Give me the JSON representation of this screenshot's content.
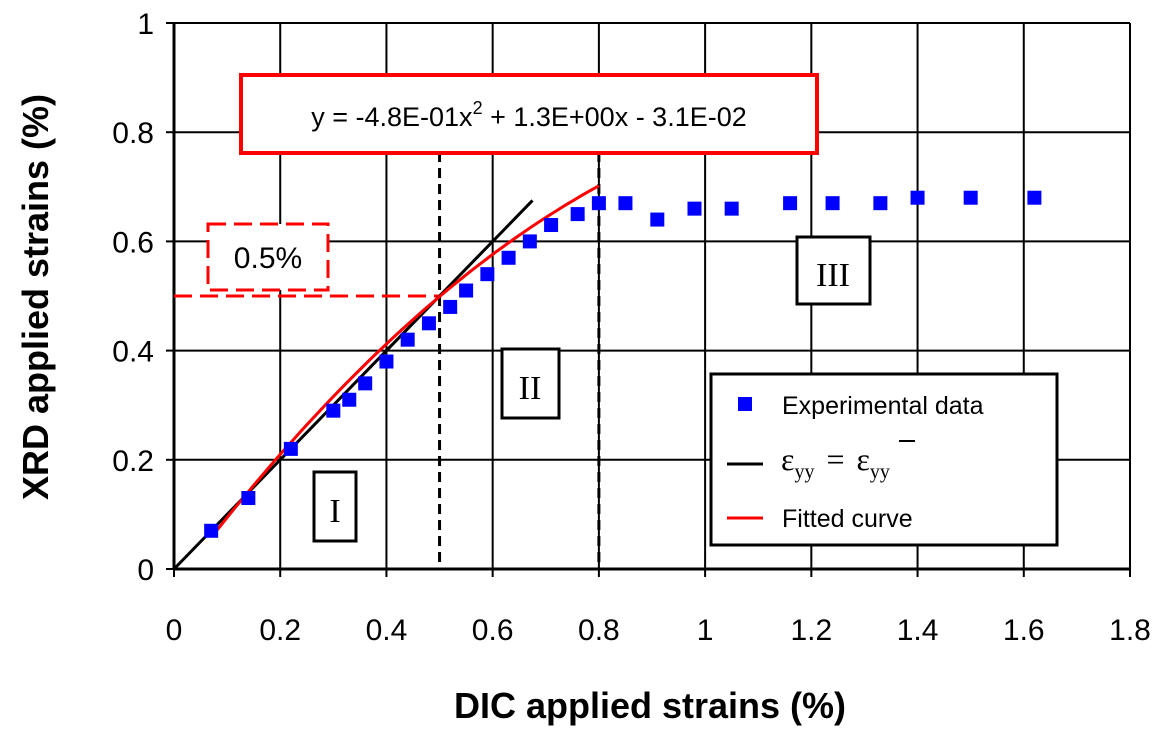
{
  "chart_data": {
    "type": "scatter",
    "xlabel": "DIC applied strains (%)",
    "ylabel": "XRD applied strains (%)",
    "xlim": [
      0,
      1.8
    ],
    "ylim": [
      0,
      1
    ],
    "x_ticks": [
      "0",
      "0.2",
      "0.4",
      "0.6",
      "0.8",
      "1",
      "1.2",
      "1.4",
      "1.6",
      "1.8"
    ],
    "y_ticks": [
      "0",
      "0.2",
      "0.4",
      "0.6",
      "0.8",
      "1"
    ],
    "grid": true,
    "legend_position": "bottom-right",
    "series": [
      {
        "name": "Experimental data",
        "kind": "markers",
        "color": "#0000ff",
        "points": [
          [
            0.07,
            0.07
          ],
          [
            0.14,
            0.13
          ],
          [
            0.22,
            0.22
          ],
          [
            0.3,
            0.29
          ],
          [
            0.33,
            0.31
          ],
          [
            0.36,
            0.34
          ],
          [
            0.4,
            0.38
          ],
          [
            0.44,
            0.42
          ],
          [
            0.48,
            0.45
          ],
          [
            0.52,
            0.48
          ],
          [
            0.55,
            0.51
          ],
          [
            0.59,
            0.54
          ],
          [
            0.63,
            0.57
          ],
          [
            0.67,
            0.6
          ],
          [
            0.71,
            0.63
          ],
          [
            0.76,
            0.65
          ],
          [
            0.8,
            0.67
          ],
          [
            0.85,
            0.67
          ],
          [
            0.91,
            0.64
          ],
          [
            0.98,
            0.66
          ],
          [
            1.05,
            0.66
          ],
          [
            1.16,
            0.67
          ],
          [
            1.24,
            0.67
          ],
          [
            1.33,
            0.67
          ],
          [
            1.4,
            0.68
          ],
          [
            1.5,
            0.68
          ],
          [
            1.62,
            0.68
          ]
        ]
      },
      {
        "name_parts": {
          "main": "ε",
          "sub": "yy",
          "eq": "=",
          "main2": "ε",
          "sub2": "yy"
        },
        "kind": "line",
        "color": "#000000",
        "points": [
          [
            0,
            0
          ],
          [
            0.675,
            0.675
          ]
        ]
      },
      {
        "name": "Fitted curve",
        "kind": "curve",
        "color": "#ff0000",
        "equation": {
          "a": -0.48,
          "b": 1.3,
          "c": -0.031
        },
        "x_range": [
          0.08,
          0.8
        ]
      }
    ],
    "annotations": {
      "equation_box": {
        "text": "y = -4.8E-01x",
        "sup": "2",
        "text2": " + 1.3E+00x - 3.1E-02"
      },
      "threshold": {
        "label": "0.5%",
        "y": 0.5,
        "x_start": 0,
        "x_end": 0.5
      },
      "vlines": [
        0.5,
        0.8
      ],
      "regions": [
        "I",
        "II",
        "III"
      ]
    }
  }
}
